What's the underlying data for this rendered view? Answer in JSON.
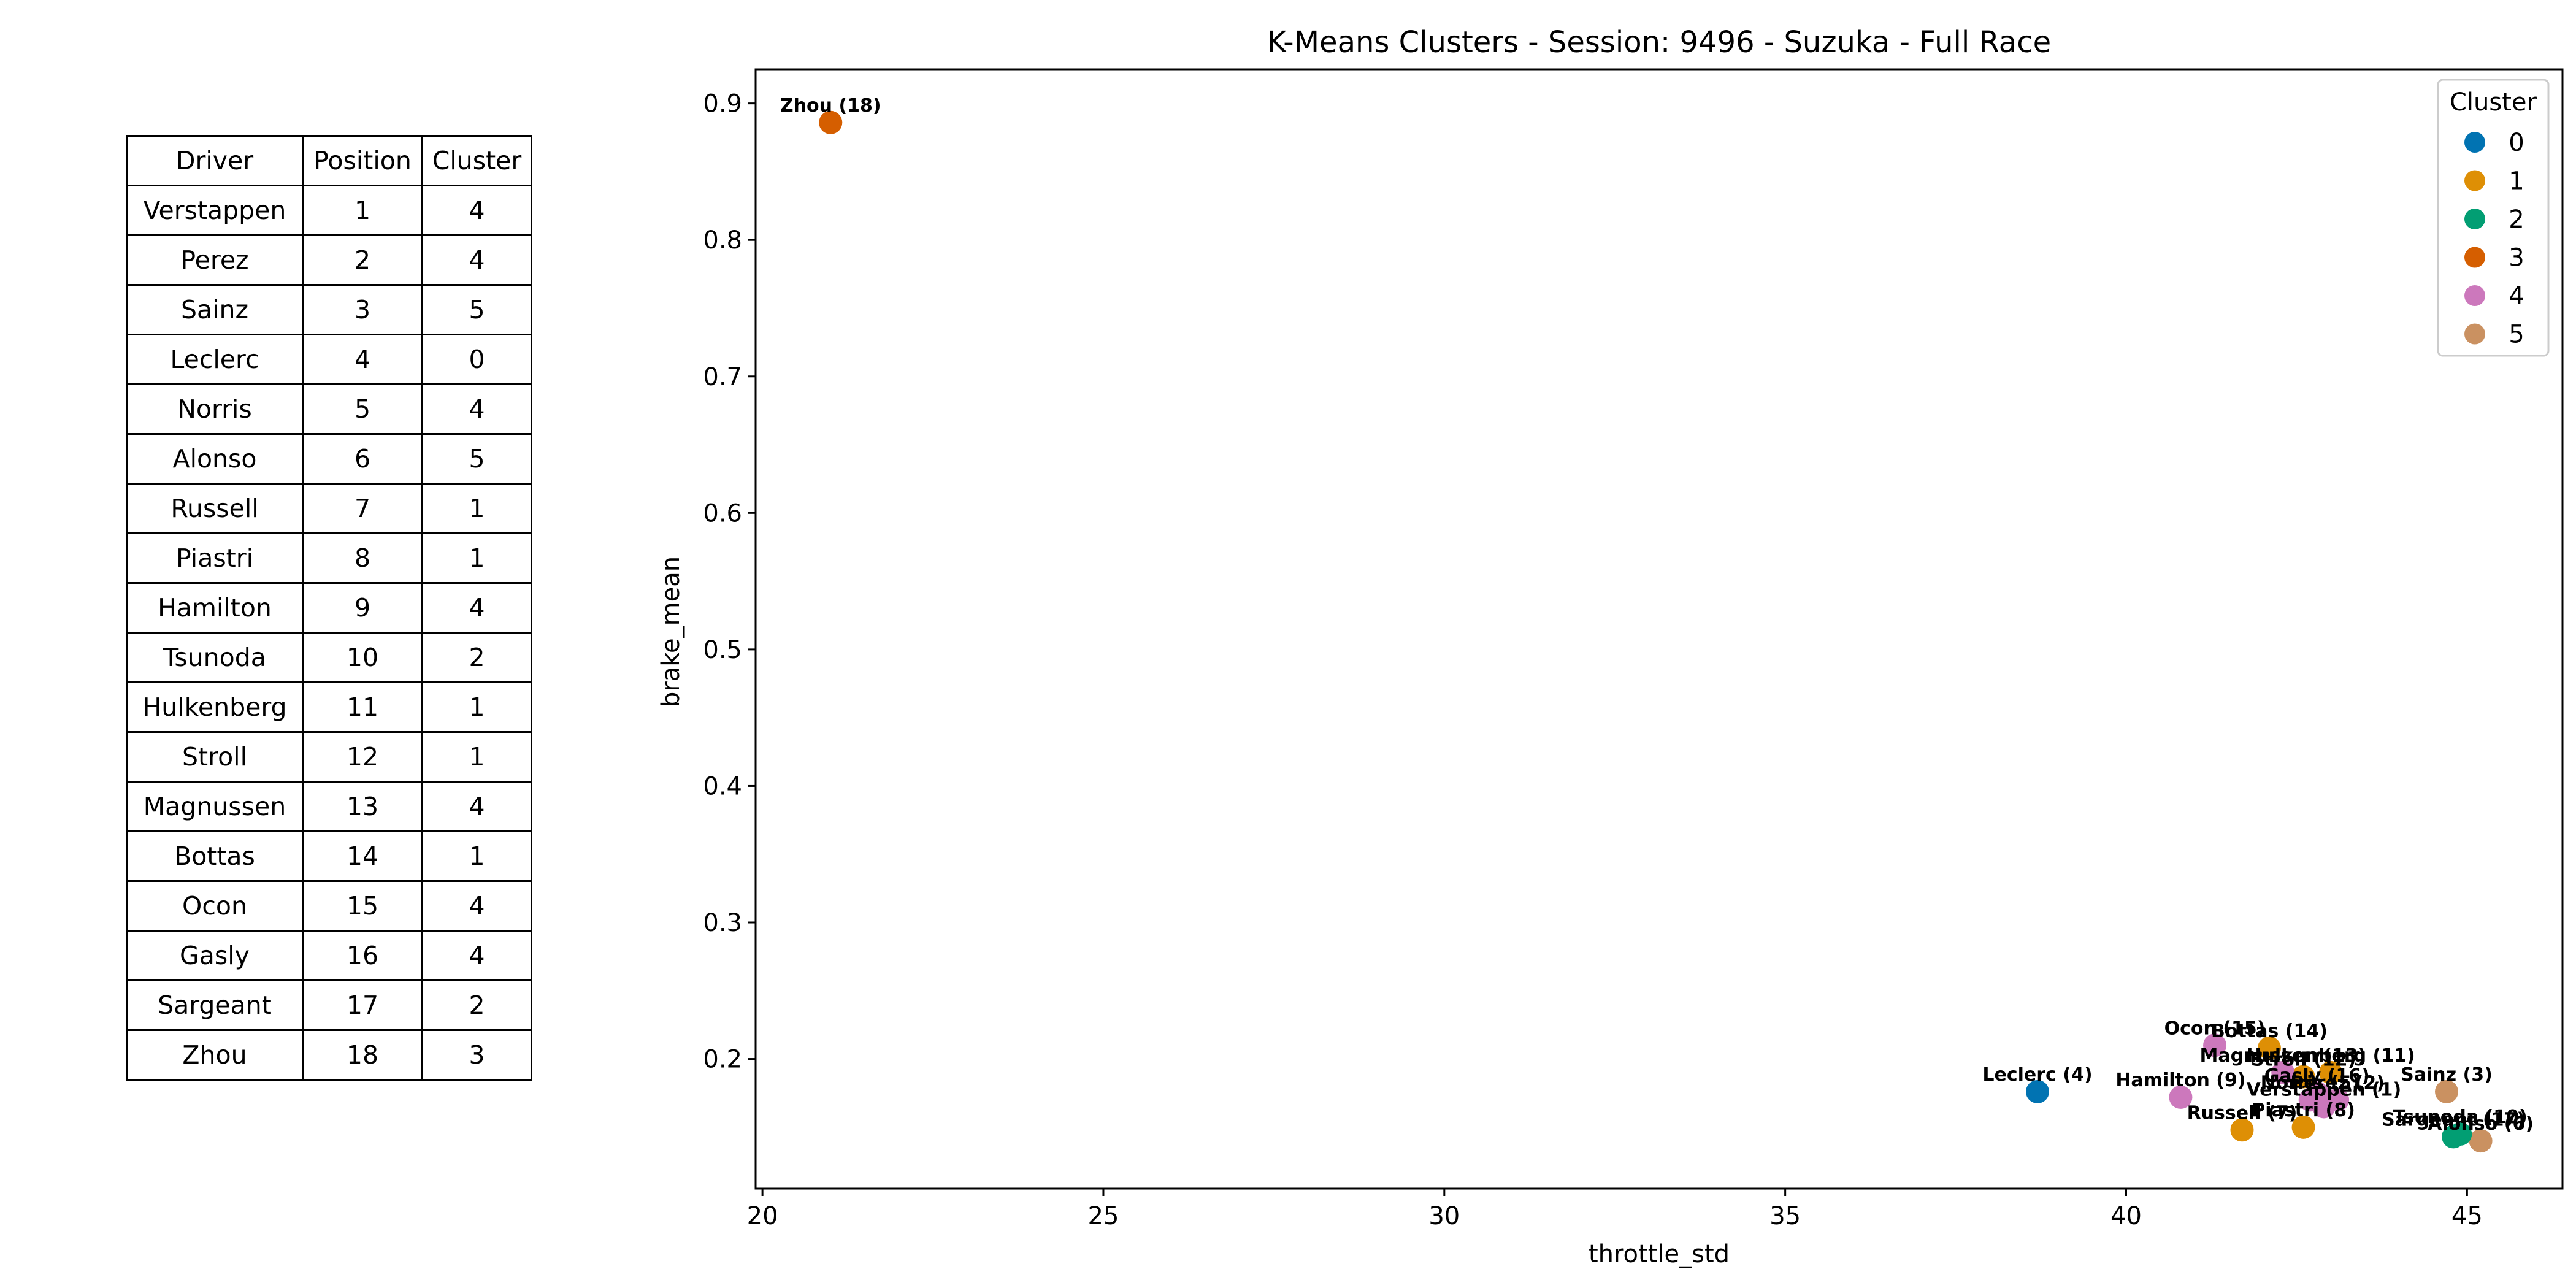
{
  "table": {
    "headers": [
      "Driver",
      "Position",
      "Cluster"
    ],
    "rows": [
      [
        "Verstappen",
        "1",
        "4"
      ],
      [
        "Perez",
        "2",
        "4"
      ],
      [
        "Sainz",
        "3",
        "5"
      ],
      [
        "Leclerc",
        "4",
        "0"
      ],
      [
        "Norris",
        "5",
        "4"
      ],
      [
        "Alonso",
        "6",
        "5"
      ],
      [
        "Russell",
        "7",
        "1"
      ],
      [
        "Piastri",
        "8",
        "1"
      ],
      [
        "Hamilton",
        "9",
        "4"
      ],
      [
        "Tsunoda",
        "10",
        "2"
      ],
      [
        "Hulkenberg",
        "11",
        "1"
      ],
      [
        "Stroll",
        "12",
        "1"
      ],
      [
        "Magnussen",
        "13",
        "4"
      ],
      [
        "Bottas",
        "14",
        "1"
      ],
      [
        "Ocon",
        "15",
        "4"
      ],
      [
        "Gasly",
        "16",
        "4"
      ],
      [
        "Sargeant",
        "17",
        "2"
      ],
      [
        "Zhou",
        "18",
        "3"
      ]
    ]
  },
  "chart_data": {
    "type": "scatter",
    "title": "K-Means Clusters - Session: 9496 - Suzuka - Full Race",
    "xlabel": "throttle_std",
    "ylabel": "brake_mean",
    "xlim": [
      19.9,
      46.4
    ],
    "ylim": [
      0.105,
      0.925
    ],
    "xticks": [
      "20",
      "25",
      "30",
      "35",
      "40",
      "45"
    ],
    "yticks": [
      "0.2",
      "0.3",
      "0.4",
      "0.5",
      "0.6",
      "0.7",
      "0.8",
      "0.9"
    ],
    "legend": {
      "title": "Cluster",
      "position": "top-right",
      "entries": [
        {
          "label": "0",
          "color": "#0173b2"
        },
        {
          "label": "1",
          "color": "#de8f05"
        },
        {
          "label": "2",
          "color": "#029e73"
        },
        {
          "label": "3",
          "color": "#d55e00"
        },
        {
          "label": "4",
          "color": "#cc78bc"
        },
        {
          "label": "5",
          "color": "#ca9161"
        }
      ]
    },
    "points": [
      {
        "label": "Verstappen (1)",
        "x": 42.9,
        "y": 0.165,
        "cluster": 4
      },
      {
        "label": "Perez (2)",
        "x": 43.1,
        "y": 0.17,
        "cluster": 4
      },
      {
        "label": "Sainz (3)",
        "x": 44.7,
        "y": 0.176,
        "cluster": 5
      },
      {
        "label": "Leclerc (4)",
        "x": 38.7,
        "y": 0.176,
        "cluster": 0
      },
      {
        "label": "Norris (5)",
        "x": 42.7,
        "y": 0.17,
        "cluster": 4
      },
      {
        "label": "Alonso (6)",
        "x": 45.2,
        "y": 0.14,
        "cluster": 5
      },
      {
        "label": "Russell (7)",
        "x": 41.7,
        "y": 0.148,
        "cluster": 1
      },
      {
        "label": "Piastri (8)",
        "x": 42.6,
        "y": 0.15,
        "cluster": 1
      },
      {
        "label": "Hamilton (9)",
        "x": 40.8,
        "y": 0.172,
        "cluster": 4
      },
      {
        "label": "Tsunoda (10)",
        "x": 44.9,
        "y": 0.145,
        "cluster": 2
      },
      {
        "label": "Hulkenberg (11)",
        "x": 43.0,
        "y": 0.19,
        "cluster": 1
      },
      {
        "label": "Stroll (12)",
        "x": 42.6,
        "y": 0.187,
        "cluster": 1
      },
      {
        "label": "Magnussen (13)",
        "x": 42.3,
        "y": 0.19,
        "cluster": 4
      },
      {
        "label": "Bottas (14)",
        "x": 42.1,
        "y": 0.208,
        "cluster": 1
      },
      {
        "label": "Ocon (15)",
        "x": 41.3,
        "y": 0.21,
        "cluster": 4
      },
      {
        "label": "Gasly (16)",
        "x": 42.8,
        "y": 0.175,
        "cluster": 4
      },
      {
        "label": "Sargeant (17)",
        "x": 44.8,
        "y": 0.143,
        "cluster": 2
      },
      {
        "label": "Zhou (18)",
        "x": 21.0,
        "y": 0.886,
        "cluster": 3
      }
    ]
  }
}
